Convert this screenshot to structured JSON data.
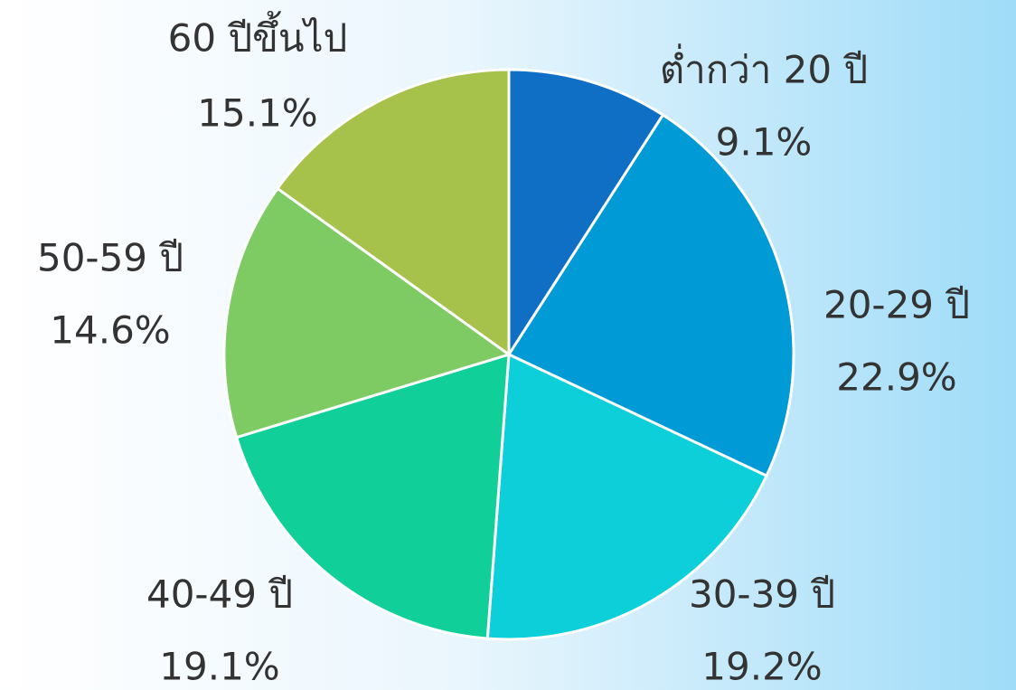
{
  "chart_data": {
    "type": "pie",
    "categories": [
      "ต่ำกว่า 20 ปี",
      "20-29 ปี",
      "30-39 ปี",
      "40-49 ปี",
      "50-59 ปี",
      "60 ปีขึ้นไป"
    ],
    "values": [
      9.1,
      22.9,
      19.2,
      19.1,
      14.6,
      15.1
    ],
    "value_labels": [
      "9.1%",
      "22.9%",
      "19.2%",
      "19.1%",
      "14.6%",
      "15.1%"
    ],
    "colors": [
      "#0e6fc4",
      "#009ad6",
      "#0ccfd9",
      "#10cf98",
      "#7ecb63",
      "#a6c24a"
    ]
  }
}
